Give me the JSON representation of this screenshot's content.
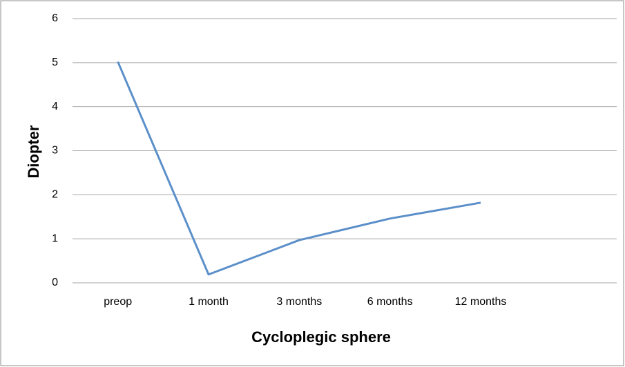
{
  "chart_data": {
    "type": "line",
    "x_label": "Cycloplegic sphere",
    "y_label": "Diopter",
    "categories": [
      "preop",
      "1 month",
      "3 months",
      "6 months",
      "12 months",
      null
    ],
    "series": [
      {
        "name": "Cycloplegic sphere",
        "color": "#5b8fc9",
        "values": [
          5.02,
          0.19,
          0.97,
          1.46,
          1.82,
          null
        ]
      }
    ],
    "ylim": [
      0,
      6
    ],
    "yticks": [
      0,
      1,
      2,
      3,
      4,
      5,
      6
    ],
    "grid": true,
    "legend": false
  }
}
